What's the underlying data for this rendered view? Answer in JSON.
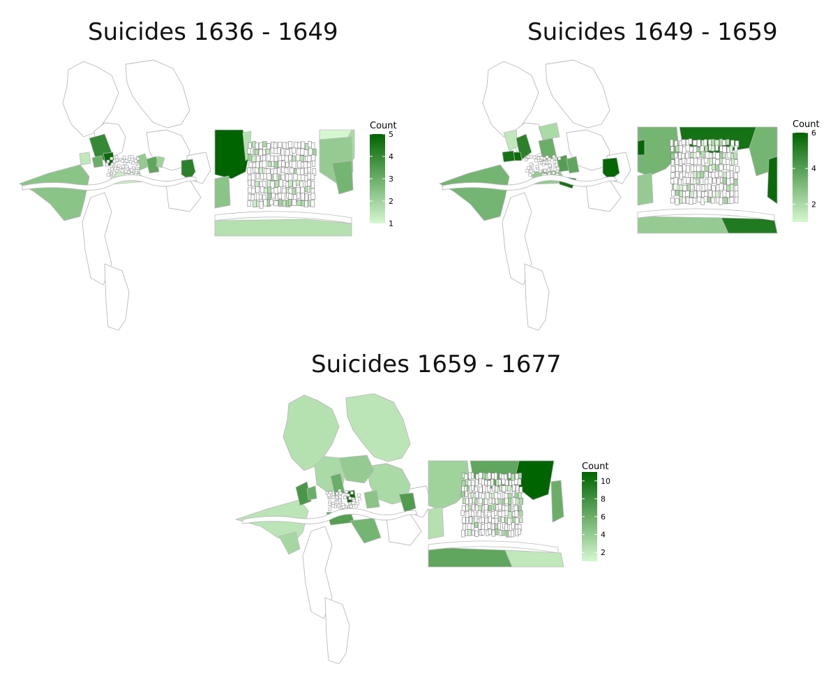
{
  "colors": {
    "low": "#d5f7d0",
    "high": "#006400",
    "outline": "#b9b9b9",
    "river": "#ffffff"
  },
  "panels": [
    {
      "title": "Suicides 1636 - 1649",
      "legend": {
        "title": "Count",
        "min": 1,
        "max": 5,
        "ticks": [
          "1",
          "2",
          "3",
          "4",
          "5"
        ]
      }
    },
    {
      "title": "Suicides 1649 - 1659",
      "legend": {
        "title": "Count",
        "min": 1,
        "max": 6,
        "ticks": [
          "2",
          "4",
          "6"
        ]
      }
    },
    {
      "title": "Suicides 1659 - 1677",
      "legend": {
        "title": "Count",
        "min": 1,
        "max": 11,
        "ticks": [
          "2",
          "4",
          "6",
          "8",
          "10"
        ]
      }
    }
  ]
}
